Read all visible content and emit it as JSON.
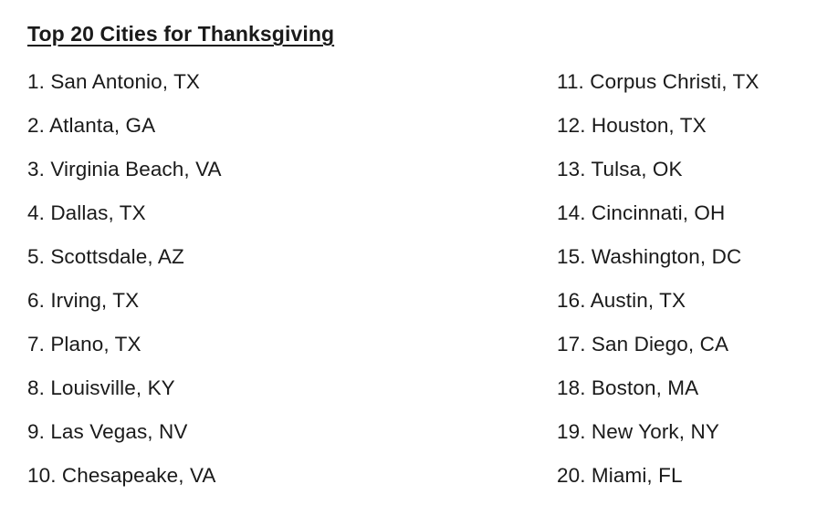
{
  "header": {
    "title": "Top 20 Cities for Thanksgiving"
  },
  "columns": [
    {
      "items": [
        "1. San Antonio, TX",
        "2. Atlanta, GA",
        "3. Virginia Beach, VA",
        "4. Dallas, TX",
        "5. Scottsdale, AZ",
        "6. Irving, TX",
        "7. Plano, TX",
        "8. Louisville, KY",
        "9. Las Vegas, NV",
        "10. Chesapeake, VA"
      ]
    },
    {
      "items": [
        "11. Corpus Christi, TX",
        "12. Houston, TX",
        "13. Tulsa, OK",
        "14. Cincinnati, OH",
        "15. Washington, DC",
        "16. Austin, TX",
        "17. San Diego, CA",
        "18. Boston, MA",
        "19. New York, NY",
        "20. Miami, FL"
      ]
    }
  ],
  "colors": {
    "text": "#1a1a1a",
    "background": "#ffffff"
  }
}
